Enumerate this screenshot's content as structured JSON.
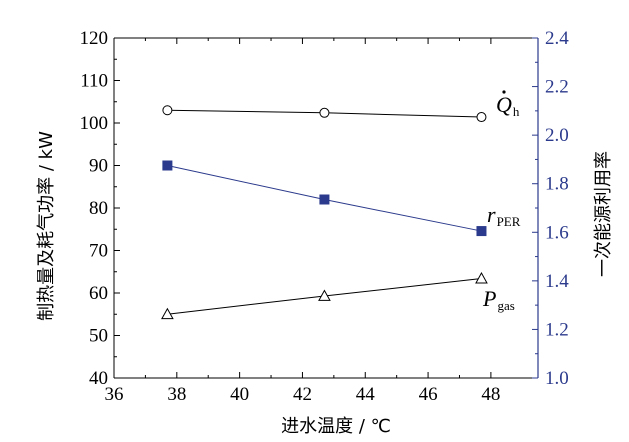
{
  "chart_data": {
    "type": "line",
    "xlabel": "进水温度 / ℃",
    "ylabel_left": "制热量及耗气功率 / kW",
    "ylabel_right": "一次能源利用率",
    "xlim": [
      36,
      49.5
    ],
    "ylim_left": [
      40,
      120
    ],
    "ylim_right": [
      1.0,
      2.4
    ],
    "xticks": [
      "36",
      "38",
      "40",
      "42",
      "44",
      "46",
      "48"
    ],
    "yticks_left": [
      "40",
      "50",
      "60",
      "70",
      "80",
      "90",
      "100",
      "110",
      "120"
    ],
    "yticks_right": [
      "1.0",
      "1.2",
      "1.4",
      "1.6",
      "1.8",
      "2.0",
      "2.2",
      "2.4"
    ],
    "grid": false,
    "series": [
      {
        "label_main": "Q",
        "label_sub": "h",
        "axis": "left",
        "marker": "circle-open",
        "color": "#000000",
        "x": [
          37.7,
          42.7,
          47.7
        ],
        "y": [
          103.0,
          102.4,
          101.4
        ]
      },
      {
        "label_main": "r",
        "label_sub": "PER",
        "axis": "right",
        "marker": "square-filled",
        "color": "#2b3a8c",
        "x": [
          37.7,
          42.7,
          47.7
        ],
        "y": [
          1.875,
          1.735,
          1.605
        ]
      },
      {
        "label_main": "P",
        "label_sub": "gas",
        "axis": "left",
        "marker": "triangle-open",
        "color": "#000000",
        "x": [
          37.7,
          42.7,
          47.7
        ],
        "y": [
          55.0,
          59.3,
          63.4
        ]
      }
    ]
  }
}
